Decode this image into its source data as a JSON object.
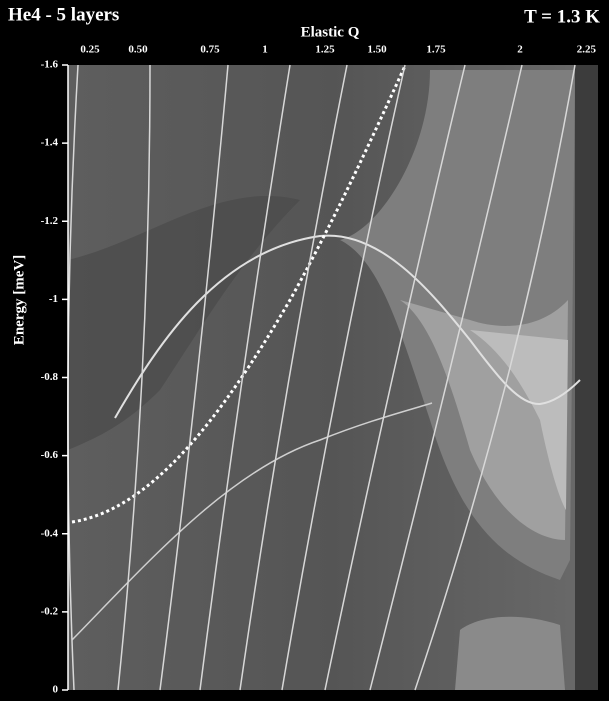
{
  "chart_data": {
    "type": "contour",
    "title": "He4 - 5 layers",
    "subtitle": "T = 1.3 K",
    "x_label": "Elastic Q",
    "y_label": "Energy [meV]",
    "xticks": [
      0.25,
      {
        "value": 0.5,
        "label": "0.50"
      },
      0.75,
      1,
      1.25,
      {
        "value": 1.5,
        "label": "1.50"
      },
      1.75,
      2,
      2.25
    ],
    "ylim": [
      0,
      -1.6
    ],
    "yticks": [
      -1.6,
      -1.4,
      -1.2,
      -1,
      -0.8,
      -0.6,
      -0.4,
      -0.2,
      0
    ]
  }
}
